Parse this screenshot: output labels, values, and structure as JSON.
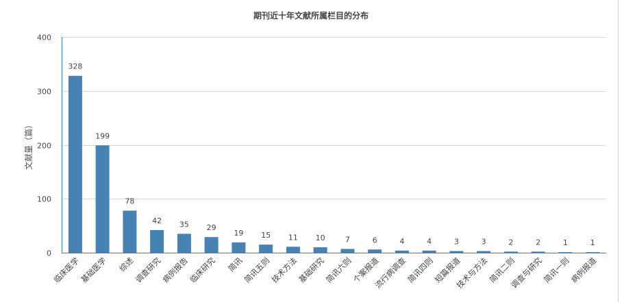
{
  "chart_data": {
    "type": "bar",
    "title": "期刊近十年文献所属栏目的分布",
    "ylabel": "文献量（篇）",
    "xlabel": "",
    "ylim": [
      0,
      400
    ],
    "yticks": [
      0,
      100,
      200,
      300,
      400
    ],
    "grid": true,
    "legend": "none",
    "bar_color": "#4682b4",
    "categories": [
      "临床医学",
      "基础医学",
      "综述",
      "调查研究",
      "病例报告",
      "临床研究",
      "简讯",
      "简讯五则",
      "技术方法",
      "基础研究",
      "简讯六则",
      "个案报道",
      "流行病调查",
      "简讯四则",
      "短篇报道",
      "技术与方法",
      "简讯二则",
      "调查与研究",
      "简讯一则",
      "病例报道"
    ],
    "values": [
      328,
      199,
      78,
      42,
      35,
      29,
      19,
      15,
      11,
      10,
      7,
      6,
      4,
      4,
      3,
      3,
      2,
      2,
      1,
      1
    ]
  }
}
